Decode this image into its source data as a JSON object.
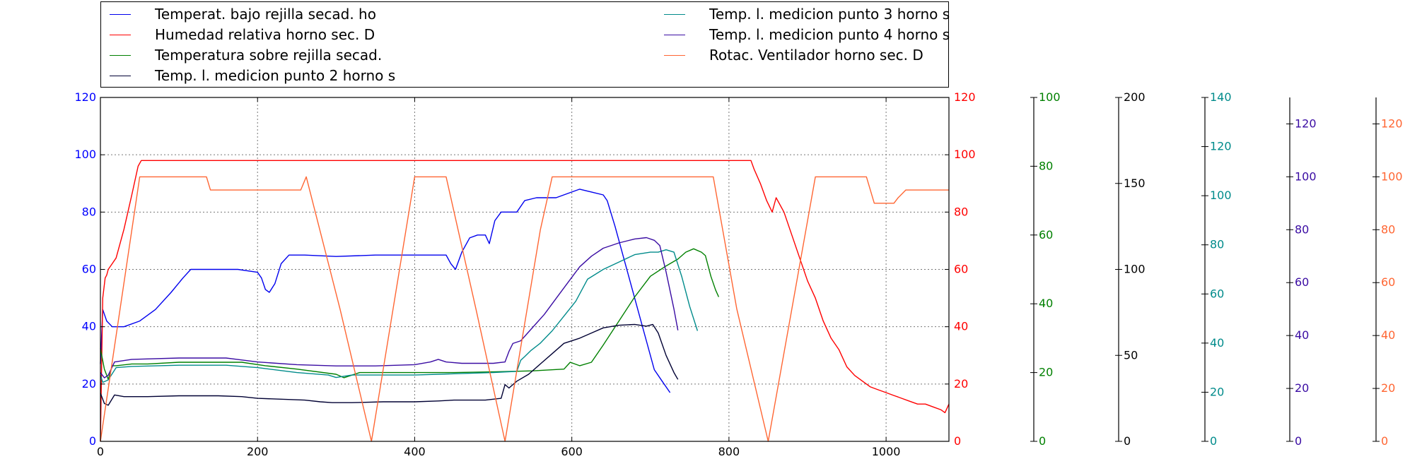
{
  "chart_data": {
    "type": "line",
    "title": "",
    "xlabel": "",
    "x_ticks": [
      0,
      200,
      400,
      600,
      800,
      1000
    ],
    "xlim": [
      0,
      1080
    ],
    "grid": true,
    "legend_placement": "top, above plot, two columns",
    "axes": [
      {
        "id": "y1",
        "side": "left",
        "color": "#0000ff",
        "ylim": [
          0,
          120
        ],
        "ticks": [
          0,
          20,
          40,
          60,
          80,
          100,
          120
        ]
      },
      {
        "id": "y2",
        "side": "right",
        "color": "#ff0000",
        "ylim": [
          0,
          120
        ],
        "ticks": [
          0,
          20,
          40,
          60,
          80,
          100,
          120
        ]
      },
      {
        "id": "y3",
        "side": "right",
        "color": "#008000",
        "ylim": [
          0,
          100
        ],
        "ticks": [
          0,
          20,
          40,
          60,
          80,
          100
        ]
      },
      {
        "id": "y4",
        "side": "right",
        "color": "#000000",
        "ylim": [
          0,
          200
        ],
        "ticks": [
          0,
          50,
          100,
          150,
          200
        ]
      },
      {
        "id": "y5",
        "side": "right",
        "color": "#008b8b",
        "ylim": [
          0,
          140
        ],
        "ticks": [
          0,
          20,
          40,
          60,
          80,
          100,
          120,
          140
        ]
      },
      {
        "id": "y6",
        "side": "right",
        "color": "#3a0ca3",
        "ylim": [
          0,
          130
        ],
        "ticks": [
          0,
          20,
          40,
          60,
          80,
          100,
          120
        ]
      },
      {
        "id": "y7",
        "side": "right",
        "color": "#ff6633",
        "ylim": [
          0,
          130
        ],
        "ticks": [
          0,
          20,
          40,
          60,
          80,
          100,
          120
        ]
      }
    ],
    "series": [
      {
        "name": "Temperat. bajo rejilla secad.  ho",
        "color": "#0000ee",
        "axis": "y1",
        "points": [
          [
            0,
            27
          ],
          [
            3,
            46
          ],
          [
            8,
            42
          ],
          [
            15,
            40
          ],
          [
            30,
            40
          ],
          [
            50,
            42
          ],
          [
            70,
            46
          ],
          [
            90,
            52
          ],
          [
            105,
            57
          ],
          [
            115,
            60
          ],
          [
            130,
            60
          ],
          [
            150,
            60
          ],
          [
            175,
            60
          ],
          [
            200,
            59
          ],
          [
            205,
            57
          ],
          [
            210,
            53
          ],
          [
            215,
            52
          ],
          [
            222,
            55
          ],
          [
            230,
            62
          ],
          [
            240,
            65
          ],
          [
            260,
            65
          ],
          [
            300,
            64.5
          ],
          [
            350,
            65
          ],
          [
            400,
            65
          ],
          [
            440,
            65
          ],
          [
            446,
            62
          ],
          [
            452,
            60
          ],
          [
            460,
            66
          ],
          [
            470,
            71
          ],
          [
            480,
            72
          ],
          [
            490,
            72
          ],
          [
            495,
            69
          ],
          [
            502,
            77
          ],
          [
            510,
            80
          ],
          [
            520,
            80
          ],
          [
            530,
            80
          ],
          [
            540,
            84
          ],
          [
            555,
            85
          ],
          [
            580,
            85
          ],
          [
            600,
            87
          ],
          [
            610,
            88
          ],
          [
            625,
            87
          ],
          [
            640,
            86
          ],
          [
            645,
            84
          ],
          [
            655,
            75
          ],
          [
            665,
            65
          ],
          [
            675,
            55
          ],
          [
            685,
            45
          ],
          [
            695,
            35
          ],
          [
            705,
            25
          ],
          [
            715,
            21
          ],
          [
            720,
            19
          ],
          [
            725,
            17
          ]
        ]
      },
      {
        "name": "Humedad relativa horno sec. D",
        "color": "#ff0000",
        "axis": "y2",
        "points": [
          [
            0,
            0
          ],
          [
            3,
            50
          ],
          [
            6,
            57
          ],
          [
            8,
            58
          ],
          [
            10,
            60
          ],
          [
            15,
            62
          ],
          [
            20,
            64
          ],
          [
            30,
            74
          ],
          [
            40,
            86
          ],
          [
            48,
            96
          ],
          [
            52,
            98
          ],
          [
            60,
            98
          ],
          [
            200,
            98
          ],
          [
            400,
            98
          ],
          [
            600,
            98
          ],
          [
            800,
            98
          ],
          [
            828,
            98
          ],
          [
            832,
            95
          ],
          [
            840,
            90
          ],
          [
            848,
            84
          ],
          [
            855,
            80
          ],
          [
            860,
            85
          ],
          [
            870,
            80
          ],
          [
            880,
            72
          ],
          [
            890,
            64
          ],
          [
            900,
            56
          ],
          [
            910,
            50
          ],
          [
            920,
            42
          ],
          [
            930,
            36
          ],
          [
            940,
            32
          ],
          [
            950,
            26
          ],
          [
            960,
            23
          ],
          [
            970,
            21
          ],
          [
            980,
            19
          ],
          [
            990,
            18
          ],
          [
            1000,
            17
          ],
          [
            1010,
            16
          ],
          [
            1020,
            15
          ],
          [
            1030,
            14
          ],
          [
            1040,
            13
          ],
          [
            1050,
            13
          ],
          [
            1060,
            12
          ],
          [
            1070,
            11
          ],
          [
            1075,
            10
          ],
          [
            1080,
            13
          ]
        ]
      },
      {
        "name": "Temperatura sobre rejilla secad.",
        "color": "#008000",
        "axis": "y3",
        "points": [
          [
            0,
            27
          ],
          [
            5,
            21
          ],
          [
            10,
            18
          ],
          [
            15,
            22
          ],
          [
            20,
            22
          ],
          [
            40,
            22.5
          ],
          [
            60,
            22.5
          ],
          [
            100,
            23
          ],
          [
            130,
            23
          ],
          [
            180,
            23
          ],
          [
            210,
            22
          ],
          [
            250,
            21
          ],
          [
            300,
            19.5
          ],
          [
            310,
            18.5
          ],
          [
            330,
            20
          ],
          [
            360,
            20
          ],
          [
            400,
            20
          ],
          [
            450,
            20
          ],
          [
            500,
            20.2
          ],
          [
            550,
            20.5
          ],
          [
            590,
            21
          ],
          [
            598,
            23
          ],
          [
            610,
            22
          ],
          [
            625,
            23
          ],
          [
            640,
            28
          ],
          [
            660,
            35
          ],
          [
            680,
            42
          ],
          [
            700,
            48
          ],
          [
            720,
            51
          ],
          [
            735,
            53
          ],
          [
            745,
            55
          ],
          [
            755,
            56
          ],
          [
            765,
            55
          ],
          [
            770,
            54
          ],
          [
            777,
            48
          ],
          [
            783,
            44
          ],
          [
            787,
            42
          ]
        ]
      },
      {
        "name": "Temp. l. medicion punto 2 horno s",
        "color": "#000033",
        "axis": "y4",
        "points": [
          [
            0,
            28
          ],
          [
            5,
            22
          ],
          [
            10,
            21
          ],
          [
            18,
            27
          ],
          [
            30,
            26
          ],
          [
            60,
            26
          ],
          [
            100,
            26.5
          ],
          [
            150,
            26.5
          ],
          [
            180,
            26
          ],
          [
            200,
            25
          ],
          [
            230,
            24.5
          ],
          [
            260,
            24
          ],
          [
            280,
            23
          ],
          [
            295,
            22.5
          ],
          [
            320,
            22.5
          ],
          [
            360,
            23
          ],
          [
            400,
            23
          ],
          [
            430,
            23.5
          ],
          [
            450,
            24
          ],
          [
            490,
            24
          ],
          [
            510,
            25
          ],
          [
            515,
            33
          ],
          [
            520,
            31
          ],
          [
            530,
            35
          ],
          [
            545,
            39
          ],
          [
            560,
            45
          ],
          [
            575,
            51
          ],
          [
            590,
            57
          ],
          [
            610,
            60
          ],
          [
            625,
            63
          ],
          [
            640,
            66
          ],
          [
            660,
            67.5
          ],
          [
            680,
            68
          ],
          [
            695,
            67
          ],
          [
            703,
            68
          ],
          [
            710,
            63
          ],
          [
            720,
            50
          ],
          [
            730,
            40
          ],
          [
            735,
            36
          ]
        ]
      },
      {
        "name": "Temp. l. medicion punto 3 horno s",
        "color": "#008b8b",
        "axis": "y5",
        "points": [
          [
            0,
            27
          ],
          [
            3,
            24
          ],
          [
            10,
            25
          ],
          [
            20,
            30
          ],
          [
            40,
            30.5
          ],
          [
            100,
            31
          ],
          [
            160,
            31
          ],
          [
            200,
            30
          ],
          [
            250,
            28
          ],
          [
            290,
            27
          ],
          [
            300,
            26
          ],
          [
            320,
            27
          ],
          [
            360,
            27
          ],
          [
            400,
            27
          ],
          [
            450,
            27.5
          ],
          [
            500,
            28
          ],
          [
            530,
            28.5
          ],
          [
            535,
            33
          ],
          [
            540,
            34.5
          ],
          [
            548,
            37
          ],
          [
            560,
            40
          ],
          [
            575,
            45
          ],
          [
            590,
            51
          ],
          [
            605,
            57
          ],
          [
            620,
            66
          ],
          [
            640,
            70
          ],
          [
            660,
            73
          ],
          [
            680,
            76
          ],
          [
            700,
            77
          ],
          [
            710,
            77
          ],
          [
            720,
            78
          ],
          [
            730,
            77
          ],
          [
            740,
            67
          ],
          [
            750,
            55
          ],
          [
            760,
            45
          ]
        ]
      },
      {
        "name": "Temp. l. medicion punto 4 horno s",
        "color": "#3a0ca3",
        "axis": "y6",
        "points": [
          [
            0,
            26
          ],
          [
            5,
            24
          ],
          [
            10,
            25
          ],
          [
            18,
            30
          ],
          [
            40,
            31
          ],
          [
            100,
            31.5
          ],
          [
            160,
            31.5
          ],
          [
            200,
            30
          ],
          [
            250,
            29
          ],
          [
            300,
            28.5
          ],
          [
            350,
            28.5
          ],
          [
            400,
            29
          ],
          [
            420,
            30
          ],
          [
            430,
            31
          ],
          [
            440,
            30
          ],
          [
            460,
            29.5
          ],
          [
            500,
            29.5
          ],
          [
            515,
            30
          ],
          [
            520,
            34
          ],
          [
            525,
            37
          ],
          [
            535,
            38
          ],
          [
            550,
            43
          ],
          [
            565,
            48
          ],
          [
            580,
            54
          ],
          [
            595,
            60
          ],
          [
            610,
            66
          ],
          [
            625,
            70
          ],
          [
            640,
            73
          ],
          [
            660,
            75
          ],
          [
            680,
            76.5
          ],
          [
            695,
            77
          ],
          [
            705,
            76
          ],
          [
            712,
            74
          ],
          [
            720,
            64
          ],
          [
            730,
            50
          ],
          [
            735,
            42
          ]
        ]
      },
      {
        "name": "Rotac. Ventilador horno sec. D",
        "color": "#ff6633",
        "axis": "y7",
        "points": [
          [
            0,
            0
          ],
          [
            50,
            100
          ],
          [
            100,
            100
          ],
          [
            135,
            100
          ],
          [
            140,
            95
          ],
          [
            200,
            95
          ],
          [
            255,
            95
          ],
          [
            262,
            100
          ],
          [
            305,
            50
          ],
          [
            345,
            0
          ],
          [
            400,
            100
          ],
          [
            420,
            100
          ],
          [
            440,
            100
          ],
          [
            478,
            50
          ],
          [
            515,
            0
          ],
          [
            560,
            80
          ],
          [
            575,
            100
          ],
          [
            620,
            100
          ],
          [
            700,
            100
          ],
          [
            780,
            100
          ],
          [
            810,
            50
          ],
          [
            850,
            0
          ],
          [
            880,
            50
          ],
          [
            910,
            100
          ],
          [
            940,
            100
          ],
          [
            975,
            100
          ],
          [
            985,
            90
          ],
          [
            1010,
            90
          ],
          [
            1015,
            92
          ],
          [
            1025,
            95
          ],
          [
            1050,
            95
          ],
          [
            1080,
            95
          ]
        ]
      }
    ]
  },
  "legend": {
    "items": [
      {
        "label": "Temperat. bajo rejilla secad.  ho",
        "color": "#0000ee"
      },
      {
        "label": "Humedad relativa horno sec. D",
        "color": "#ff0000"
      },
      {
        "label": "Temperatura sobre rejilla secad.",
        "color": "#008000"
      },
      {
        "label": "Temp. l. medicion punto 2 horno s",
        "color": "#000033"
      },
      {
        "label": "Temp. l. medicion punto 3 horno s",
        "color": "#008b8b"
      },
      {
        "label": "Temp. l. medicion punto 4 horno s",
        "color": "#3a0ca3"
      },
      {
        "label": "Rotac. Ventilador horno sec. D",
        "color": "#ff6633"
      }
    ]
  }
}
